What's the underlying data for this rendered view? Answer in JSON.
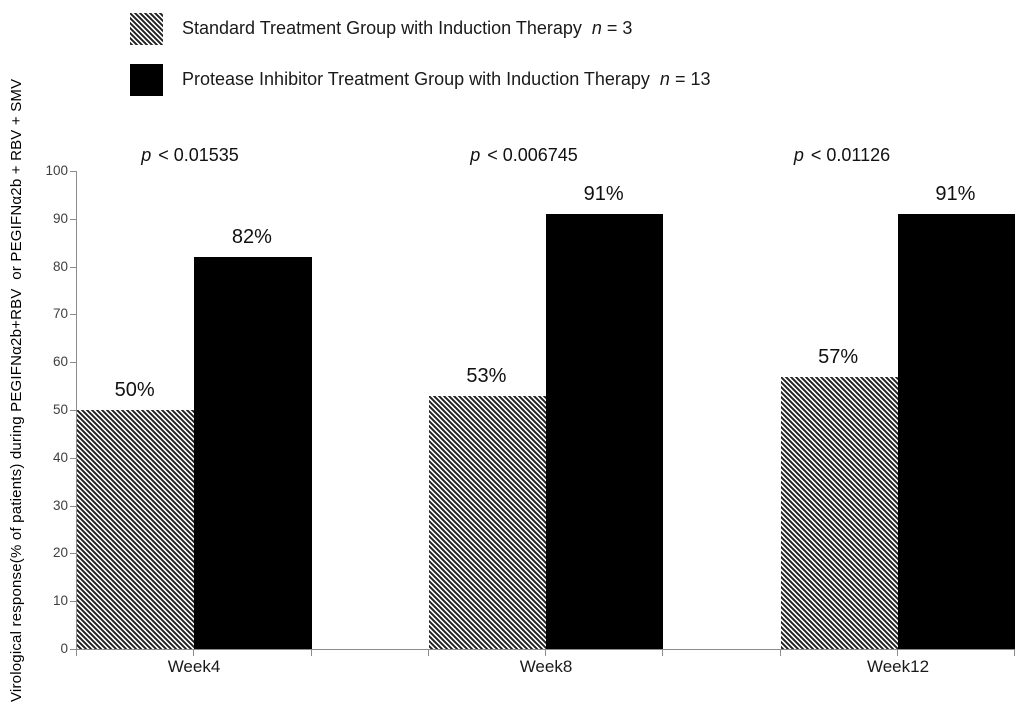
{
  "chart_data": {
    "type": "bar",
    "categories": [
      "Week4",
      "Week8",
      "Week12"
    ],
    "series": [
      {
        "name": "Standard Treatment Group with Induction Therapy",
        "n_label": {
          "prefix": "n",
          "rest": " = 3"
        },
        "values": [
          50,
          53,
          57
        ],
        "value_labels": [
          "50%",
          "53%",
          "57%"
        ],
        "fill": "hatched"
      },
      {
        "name": "Protease Inhibitor Treatment Group with Induction Therapy",
        "n_label": {
          "prefix": "n",
          "rest": " = 13"
        },
        "values": [
          82,
          91,
          91
        ],
        "value_labels": [
          "82%",
          "91%",
          "91%"
        ],
        "fill": "solid-black"
      }
    ],
    "p_annotations": [
      {
        "prefix": "p",
        "rest": " < 0.01535"
      },
      {
        "prefix": "p",
        "rest": " < 0.006745"
      },
      {
        "prefix": "p",
        "rest": " < 0.01126"
      }
    ],
    "ylabel": "Virological response(% of patients) during PEGIFNα2b+RBV  or PEGIFNα2b + RBV + SMV",
    "xlabel": "",
    "title": "",
    "ylim": [
      0,
      100
    ],
    "yticks": [
      0,
      10,
      20,
      30,
      40,
      50,
      60,
      70,
      80,
      90,
      100
    ],
    "grid": false,
    "legend_position": "top-left",
    "colors": {
      "solid_bar": "#000000",
      "hatch_line": "#1f1f1f",
      "axis": "#8c8c8c",
      "text": "#1a1a1a",
      "tick_label": "#3f3f3f"
    }
  }
}
